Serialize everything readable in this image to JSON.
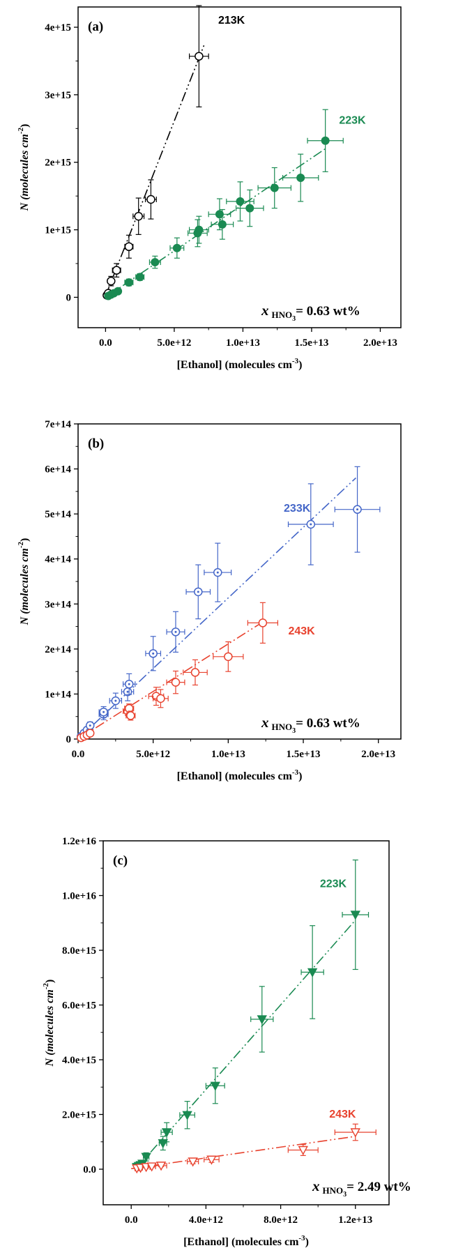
{
  "chart_data": [
    {
      "type": "scatter",
      "panel_label": "(a)",
      "xlabel": "[Ethanol] (molecules cm",
      "xlabel_sup": "-3",
      "ylabel": "N (molecules cm",
      "ylabel_sup": "-2",
      "xlim": [
        -2000000000000.0,
        21500000000000.0
      ],
      "ylim": [
        -450000000000000.0,
        4300000000000000.0
      ],
      "xticks": [
        0,
        5000000000000.0,
        10000000000000.0,
        15000000000000.0,
        20000000000000.0
      ],
      "xtick_labels": [
        "0.0",
        "5.0e+12",
        "1.0e+13",
        "1.5e+13",
        "2.0e+13"
      ],
      "yticks": [
        0,
        1000000000000000.0,
        2000000000000000.0,
        3000000000000000.0,
        4000000000000000.0
      ],
      "ytick_labels": [
        "0",
        "1e+15",
        "2e+15",
        "3e+15",
        "4e+15"
      ],
      "annotation": {
        "main": "x",
        "sub": "HNO",
        "subsub": "3",
        "tail": "= 0.63 wt%"
      },
      "series": [
        {
          "name": "213K",
          "color": "#000000",
          "marker": "open-circle",
          "fit": {
            "x0": 0,
            "y0": 20000000000000.0,
            "x1": 7200000000000.0,
            "y1": 3750000000000000.0
          },
          "points": [
            {
              "x": 100000000000.0,
              "y": 30000000000000.0,
              "xerr": 100000000000.0,
              "yerr": 10000000000000.0
            },
            {
              "x": 200000000000.0,
              "y": 60000000000000.0,
              "xerr": 100000000000.0,
              "yerr": 15000000000000.0
            },
            {
              "x": 400000000000.0,
              "y": 240000000000000.0,
              "xerr": 200000000000.0,
              "yerr": 70000000000000.0
            },
            {
              "x": 800000000000.0,
              "y": 400000000000000.0,
              "xerr": 300000000000.0,
              "yerr": 100000000000000.0
            },
            {
              "x": 1700000000000.0,
              "y": 750000000000000.0,
              "xerr": 300000000000.0,
              "yerr": 170000000000000.0
            },
            {
              "x": 2400000000000.0,
              "y": 1200000000000000.0,
              "xerr": 400000000000.0,
              "yerr": 270000000000000.0
            },
            {
              "x": 3300000000000.0,
              "y": 1450000000000000.0,
              "xerr": 400000000000.0,
              "yerr": 290000000000000.0
            },
            {
              "x": 6800000000000.0,
              "y": 3570000000000000.0,
              "xerr": 700000000000.0,
              "yerr": 750000000000000.0
            }
          ],
          "label_pos": {
            "x": 8200000000000.0,
            "y": 4050000000000000.0
          }
        },
        {
          "name": "223K",
          "color": "#1a8a52",
          "marker": "filled-circle",
          "fit": {
            "x0": 0,
            "y0": 0,
            "x1": 16000000000000.0,
            "y1": 2200000000000000.0
          },
          "points": [
            {
              "x": 200000000000.0,
              "y": 20000000000000.0,
              "xerr": 100000000000.0,
              "yerr": 10000000000000.0
            },
            {
              "x": 400000000000.0,
              "y": 40000000000000.0,
              "xerr": 100000000000.0,
              "yerr": 10000000000000.0
            },
            {
              "x": 600000000000.0,
              "y": 60000000000000.0,
              "xerr": 200000000000.0,
              "yerr": 15000000000000.0
            },
            {
              "x": 900000000000.0,
              "y": 90000000000000.0,
              "xerr": 200000000000.0,
              "yerr": 20000000000000.0
            },
            {
              "x": 1700000000000.0,
              "y": 220000000000000.0,
              "xerr": 300000000000.0,
              "yerr": 50000000000000.0
            },
            {
              "x": 2500000000000.0,
              "y": 300000000000000.0,
              "xerr": 300000000000.0,
              "yerr": 50000000000000.0
            },
            {
              "x": 3600000000000.0,
              "y": 520000000000000.0,
              "xerr": 400000000000.0,
              "yerr": 90000000000000.0
            },
            {
              "x": 5200000000000.0,
              "y": 730000000000000.0,
              "xerr": 500000000000.0,
              "yerr": 150000000000000.0
            },
            {
              "x": 6700000000000.0,
              "y": 950000000000000.0,
              "xerr": 700000000000.0,
              "yerr": 200000000000000.0
            },
            {
              "x": 6800000000000.0,
              "y": 1000000000000000.0,
              "xerr": 700000000000.0,
              "yerr": 200000000000000.0
            },
            {
              "x": 8300000000000.0,
              "y": 1230000000000000.0,
              "xerr": 800000000000.0,
              "yerr": 230000000000000.0
            },
            {
              "x": 8500000000000.0,
              "y": 1080000000000000.0,
              "xerr": 800000000000.0,
              "yerr": 220000000000000.0
            },
            {
              "x": 9800000000000.0,
              "y": 1420000000000000.0,
              "xerr": 1000000000000.0,
              "yerr": 290000000000000.0
            },
            {
              "x": 10500000000000.0,
              "y": 1320000000000000.0,
              "xerr": 1000000000000.0,
              "yerr": 270000000000000.0
            },
            {
              "x": 12300000000000.0,
              "y": 1620000000000000.0,
              "xerr": 1200000000000.0,
              "yerr": 300000000000000.0
            },
            {
              "x": 14200000000000.0,
              "y": 1770000000000000.0,
              "xerr": 1300000000000.0,
              "yerr": 350000000000000.0
            },
            {
              "x": 16000000000000.0,
              "y": 2320000000000000.0,
              "xerr": 1300000000000.0,
              "yerr": 460000000000000.0
            }
          ],
          "label_pos": {
            "x": 17000000000000.0,
            "y": 2570000000000000.0
          }
        }
      ]
    },
    {
      "type": "scatter",
      "panel_label": "(b)",
      "xlabel": "[Ethanol] (molecules cm",
      "xlabel_sup": "-3",
      "ylabel": "N (molecules cm",
      "ylabel_sup": "-2",
      "xlim": [
        0,
        21500000000000.0
      ],
      "ylim": [
        0,
        700000000000000.0
      ],
      "xticks": [
        0,
        5000000000000.0,
        10000000000000.0,
        15000000000000.0,
        20000000000000.0
      ],
      "xtick_labels": [
        "0.0",
        "5.0e+12",
        "1.0e+13",
        "1.5e+13",
        "2.0e+13"
      ],
      "yticks": [
        0,
        100000000000000.0,
        200000000000000.0,
        300000000000000.0,
        400000000000000.0,
        500000000000000.0,
        600000000000000.0,
        700000000000000.0
      ],
      "ytick_labels": [
        "0",
        "1e+14",
        "2e+14",
        "3e+14",
        "4e+14",
        "5e+14",
        "6e+14",
        "7e+14"
      ],
      "annotation": {
        "main": "x",
        "sub": "HNO",
        "subsub": "3",
        "tail": "= 0.63 wt%"
      },
      "series": [
        {
          "name": "233K",
          "color": "#4466c8",
          "marker": "open-circle-dot",
          "fit": {
            "x0": 0,
            "y0": 0,
            "x1": 18500000000000.0,
            "y1": 580000000000000.0
          },
          "points": [
            {
              "x": 200000000000.0,
              "y": 6000000000000.0,
              "xerr": 100000000000.0,
              "yerr": 3000000000000.0
            },
            {
              "x": 400000000000.0,
              "y": 13000000000000.0,
              "xerr": 100000000000.0,
              "yerr": 5000000000000.0
            },
            {
              "x": 600000000000.0,
              "y": 20000000000000.0,
              "xerr": 200000000000.0,
              "yerr": 5000000000000.0
            },
            {
              "x": 800000000000.0,
              "y": 30000000000000.0,
              "xerr": 200000000000.0,
              "yerr": 8000000000000.0
            },
            {
              "x": 1700000000000.0,
              "y": 55000000000000.0,
              "xerr": 300000000000.0,
              "yerr": 12000000000000.0
            },
            {
              "x": 1700000000000.0,
              "y": 60000000000000.0,
              "xerr": 300000000000.0,
              "yerr": 12000000000000.0
            },
            {
              "x": 2500000000000.0,
              "y": 85000000000000.0,
              "xerr": 400000000000.0,
              "yerr": 17000000000000.0
            },
            {
              "x": 3300000000000.0,
              "y": 105000000000000.0,
              "xerr": 400000000000.0,
              "yerr": 20000000000000.0
            },
            {
              "x": 3400000000000.0,
              "y": 122000000000000.0,
              "xerr": 400000000000.0,
              "yerr": 23000000000000.0
            },
            {
              "x": 5000000000000.0,
              "y": 190000000000000.0,
              "xerr": 500000000000.0,
              "yerr": 38000000000000.0
            },
            {
              "x": 6500000000000.0,
              "y": 238000000000000.0,
              "xerr": 600000000000.0,
              "yerr": 45000000000000.0
            },
            {
              "x": 8000000000000.0,
              "y": 327000000000000.0,
              "xerr": 800000000000.0,
              "yerr": 60000000000000.0
            },
            {
              "x": 9300000000000.0,
              "y": 370000000000000.0,
              "xerr": 900000000000.0,
              "yerr": 65000000000000.0
            },
            {
              "x": 15500000000000.0,
              "y": 477000000000000.0,
              "xerr": 1500000000000.0,
              "yerr": 90000000000000.0
            },
            {
              "x": 18600000000000.0,
              "y": 510000000000000.0,
              "xerr": 1500000000000.0,
              "yerr": 95000000000000.0
            }
          ],
          "label_pos": {
            "x": 13700000000000.0,
            "y": 505000000000000.0
          }
        },
        {
          "name": "243K",
          "color": "#e8422e",
          "marker": "open-circle",
          "fit": {
            "x0": 0,
            "y0": 0,
            "x1": 12300000000000.0,
            "y1": 260000000000000.0
          },
          "points": [
            {
              "x": 200000000000.0,
              "y": 3000000000000.0,
              "xerr": 100000000000.0,
              "yerr": 2000000000000.0
            },
            {
              "x": 400000000000.0,
              "y": 6000000000000.0,
              "xerr": 100000000000.0,
              "yerr": 3000000000000.0
            },
            {
              "x": 600000000000.0,
              "y": 9000000000000.0,
              "xerr": 200000000000.0,
              "yerr": 3000000000000.0
            },
            {
              "x": 800000000000.0,
              "y": 13000000000000.0,
              "xerr": 200000000000.0,
              "yerr": 5000000000000.0
            },
            {
              "x": 3300000000000.0,
              "y": 62000000000000.0,
              "xerr": 300000000000.0,
              "yerr": 10000000000000.0
            },
            {
              "x": 3400000000000.0,
              "y": 68000000000000.0,
              "xerr": 300000000000.0,
              "yerr": 10000000000000.0
            },
            {
              "x": 3500000000000.0,
              "y": 52000000000000.0,
              "xerr": 300000000000.0,
              "yerr": 10000000000000.0
            },
            {
              "x": 5200000000000.0,
              "y": 95000000000000.0,
              "xerr": 500000000000.0,
              "yerr": 20000000000000.0
            },
            {
              "x": 5500000000000.0,
              "y": 90000000000000.0,
              "xerr": 500000000000.0,
              "yerr": 20000000000000.0
            },
            {
              "x": 6500000000000.0,
              "y": 126000000000000.0,
              "xerr": 600000000000.0,
              "yerr": 25000000000000.0
            },
            {
              "x": 7800000000000.0,
              "y": 148000000000000.0,
              "xerr": 800000000000.0,
              "yerr": 28000000000000.0
            },
            {
              "x": 10000000000000.0,
              "y": 183000000000000.0,
              "xerr": 1000000000000.0,
              "yerr": 33000000000000.0
            },
            {
              "x": 12300000000000.0,
              "y": 258000000000000.0,
              "xerr": 1000000000000.0,
              "yerr": 45000000000000.0
            }
          ],
          "label_pos": {
            "x": 14000000000000.0,
            "y": 232000000000000.0
          }
        }
      ]
    },
    {
      "type": "scatter",
      "panel_label": "(c)",
      "xlabel": "[Ethanol] (molecules cm",
      "xlabel_sup": "-3",
      "ylabel": "N (molecules cm",
      "ylabel_sup": "-2",
      "xlim": [
        -1500000000000.0,
        13800000000000.0
      ],
      "ylim": [
        -1300000000000000.0,
        1.2e+16
      ],
      "xticks": [
        0,
        4000000000000.0,
        8000000000000.0,
        12000000000000.0
      ],
      "xtick_labels": [
        "0.0",
        "4.0e+12",
        "8.0e+12",
        "1.2e+13"
      ],
      "yticks": [
        0,
        2000000000000000.0,
        4000000000000000.0,
        6000000000000000.0,
        8000000000000000.0,
        1e+16,
        1.2e+16
      ],
      "ytick_labels": [
        "0.0",
        "2.0e+15",
        "4.0e+15",
        "6.0e+15",
        "8.0e+15",
        "1.0e+16",
        "1.2e+16"
      ],
      "annotation": {
        "main": "x",
        "sub": "HNO",
        "subsub": "3",
        "tail": "= 2.49 wt%"
      },
      "series": [
        {
          "name": "223K",
          "color": "#1a8a52",
          "marker": "filled-triangle-down",
          "fit": {
            "x0": 300000000000.0,
            "y0": 50000000000000.0,
            "x1": 12000000000000.0,
            "y1": 9100000000000000.0
          },
          "points": [
            {
              "x": 300000000000.0,
              "y": 80000000000000.0,
              "xerr": 100000000000.0,
              "yerr": 40000000000000.0
            },
            {
              "x": 400000000000.0,
              "y": 120000000000000.0,
              "xerr": 100000000000.0,
              "yerr": 50000000000000.0
            },
            {
              "x": 500000000000.0,
              "y": 150000000000000.0,
              "xerr": 100000000000.0,
              "yerr": 60000000000000.0
            },
            {
              "x": 600000000000.0,
              "y": 200000000000000.0,
              "xerr": 100000000000.0,
              "yerr": 80000000000000.0
            },
            {
              "x": 800000000000.0,
              "y": 450000000000000.0,
              "xerr": 150000000000.0,
              "yerr": 150000000000000.0
            },
            {
              "x": 1700000000000.0,
              "y": 950000000000000.0,
              "xerr": 200000000000.0,
              "yerr": 250000000000000.0
            },
            {
              "x": 1900000000000.0,
              "y": 1350000000000000.0,
              "xerr": 300000000000.0,
              "yerr": 350000000000000.0
            },
            {
              "x": 3000000000000.0,
              "y": 1980000000000000.0,
              "xerr": 400000000000.0,
              "yerr": 500000000000000.0
            },
            {
              "x": 4500000000000.0,
              "y": 3050000000000000.0,
              "xerr": 500000000000.0,
              "yerr": 650000000000000.0
            },
            {
              "x": 7000000000000.0,
              "y": 5480000000000000.0,
              "xerr": 600000000000.0,
              "yerr": 1200000000000000.0
            },
            {
              "x": 9700000000000.0,
              "y": 7200000000000000.0,
              "xerr": 600000000000.0,
              "yerr": 1700000000000000.0
            },
            {
              "x": 12000000000000.0,
              "y": 9300000000000000.0,
              "xerr": 700000000000.0,
              "yerr": 2000000000000000.0
            }
          ],
          "label_pos": {
            "x": 10100000000000.0,
            "y": 1.03e+16
          }
        },
        {
          "name": "243K",
          "color": "#e8422e",
          "marker": "open-triangle-down",
          "fit": {
            "x0": 0,
            "y0": 20000000000000.0,
            "x1": 12000000000000.0,
            "y1": 1200000000000000.0
          },
          "points": [
            {
              "x": 300000000000.0,
              "y": 30000000000000.0,
              "xerr": 100000000000.0,
              "yerr": 20000000000000.0
            },
            {
              "x": 500000000000.0,
              "y": 50000000000000.0,
              "xerr": 100000000000.0,
              "yerr": 20000000000000.0
            },
            {
              "x": 800000000000.0,
              "y": 80000000000000.0,
              "xerr": 200000000000.0,
              "yerr": 20000000000000.0
            },
            {
              "x": 1100000000000.0,
              "y": 100000000000000.0,
              "xerr": 200000000000.0,
              "yerr": 30000000000000.0
            },
            {
              "x": 1600000000000.0,
              "y": 130000000000000.0,
              "xerr": 300000000000.0,
              "yerr": 40000000000000.0
            },
            {
              "x": 3300000000000.0,
              "y": 280000000000000.0,
              "xerr": 300000000000.0,
              "yerr": 80000000000000.0
            },
            {
              "x": 4300000000000.0,
              "y": 350000000000000.0,
              "xerr": 400000000000.0,
              "yerr": 100000000000000.0
            },
            {
              "x": 9200000000000.0,
              "y": 700000000000000.0,
              "xerr": 800000000000.0,
              "yerr": 200000000000000.0
            },
            {
              "x": 12000000000000.0,
              "y": 1350000000000000.0,
              "xerr": 1100000000000.0,
              "yerr": 300000000000000.0
            }
          ],
          "label_pos": {
            "x": 10600000000000.0,
            "y": 1880000000000000.0
          }
        }
      ]
    }
  ]
}
